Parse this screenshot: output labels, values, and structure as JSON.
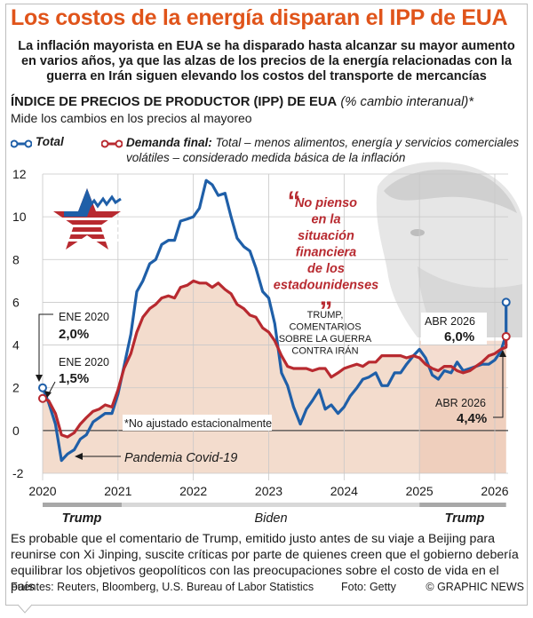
{
  "headline": "Los costos de la energía disparan el IPP de EUA",
  "subhead": "La inflación mayorista en EUA se ha disparado hasta alcanzar su mayor aumento en varios años, ya que las alzas de los precios de la energía relacionadas con la guerra en Irán siguen elevando los costos del transporte de mercancías",
  "legend": {
    "total_label": "Total",
    "final_label": "Demanda final:",
    "final_desc": " Total – menos alimentos, energía y servicios comerciales volátiles – considerado medida básica de la inflación"
  },
  "body_text": "Es probable que el comentario de Trump, emitido justo antes de su viaje a Beijing para reunirse con Xi Jinping, suscite críticas por parte de quienes creen que el gobierno debería equilibrar los objetivos geopolíticos con las preocupaciones sobre el costo de vida en el país",
  "footer": {
    "sources": "Fuentes: Reuters, Bloomberg, U.S. Bureau of Labor Statistics",
    "photo": "Foto: Getty",
    "credit": "© GRAPHIC NEWS"
  },
  "colors": {
    "total": "#1f5fa8",
    "final": "#b82a30",
    "accent": "#e0541a",
    "shade": "#f3d9c9"
  },
  "chart_data": {
    "type": "line",
    "title": "ÍNDICE DE PRECIOS DE PRODUCTOR (IPP) DE EUA",
    "title_suffix": "(% cambio interanual)*",
    "subtitle": "Mide los cambios en los precios al mayoreo",
    "ylim": [
      -2,
      12
    ],
    "yticks": [
      -2,
      0,
      2,
      4,
      6,
      8,
      10,
      12
    ],
    "xticks": [
      2020,
      2021,
      2022,
      2023,
      2024,
      2025,
      2026
    ],
    "series": [
      {
        "name": "Total",
        "color": "#1f5fa8",
        "x": [
          2020.0,
          2020.08,
          2020.17,
          2020.25,
          2020.33,
          2020.42,
          2020.5,
          2020.58,
          2020.67,
          2020.75,
          2020.83,
          2020.92,
          2021.0,
          2021.08,
          2021.17,
          2021.25,
          2021.33,
          2021.42,
          2021.5,
          2021.58,
          2021.67,
          2021.75,
          2021.83,
          2021.92,
          2022.0,
          2022.08,
          2022.17,
          2022.25,
          2022.33,
          2022.42,
          2022.5,
          2022.58,
          2022.67,
          2022.75,
          2022.83,
          2022.92,
          2023.0,
          2023.08,
          2023.17,
          2023.25,
          2023.33,
          2023.42,
          2023.5,
          2023.58,
          2023.67,
          2023.75,
          2023.83,
          2023.92,
          2024.0,
          2024.08,
          2024.17,
          2024.25,
          2024.33,
          2024.42,
          2024.5,
          2024.58,
          2024.67,
          2024.75,
          2024.83,
          2024.92,
          2025.0,
          2025.08,
          2025.17,
          2025.25,
          2025.33,
          2025.42,
          2025.5,
          2025.58,
          2025.67,
          2025.75,
          2025.83,
          2025.92,
          2026.0,
          2026.08,
          2026.17,
          2026.25
        ],
        "values": [
          2.0,
          1.3,
          0.3,
          -1.4,
          -1.1,
          -0.9,
          -0.4,
          -0.2,
          0.4,
          0.6,
          0.8,
          0.8,
          1.7,
          3.0,
          4.5,
          6.5,
          7.0,
          7.8,
          8.0,
          8.7,
          8.9,
          8.9,
          9.8,
          9.9,
          10.0,
          10.4,
          11.7,
          11.5,
          11.0,
          11.1,
          10.0,
          9.0,
          8.6,
          8.4,
          7.6,
          6.5,
          6.2,
          5.0,
          2.7,
          2.1,
          1.1,
          0.3,
          1.0,
          1.4,
          1.9,
          1.0,
          1.2,
          0.8,
          1.1,
          1.6,
          2.0,
          2.4,
          2.5,
          2.7,
          2.1,
          2.1,
          2.7,
          2.7,
          3.1,
          3.5,
          3.8,
          3.4,
          2.6,
          2.4,
          2.8,
          2.7,
          3.2,
          2.8,
          2.9,
          3.0,
          3.1,
          3.1,
          3.3,
          3.7,
          4.5,
          6.0
        ]
      },
      {
        "name": "Demanda final",
        "color": "#b82a30",
        "x": [
          2020.0,
          2020.08,
          2020.17,
          2020.25,
          2020.33,
          2020.42,
          2020.5,
          2020.58,
          2020.67,
          2020.75,
          2020.83,
          2020.92,
          2021.0,
          2021.08,
          2021.17,
          2021.25,
          2021.33,
          2021.42,
          2021.5,
          2021.58,
          2021.67,
          2021.75,
          2021.83,
          2021.92,
          2022.0,
          2022.08,
          2022.17,
          2022.25,
          2022.33,
          2022.42,
          2022.5,
          2022.58,
          2022.67,
          2022.75,
          2022.83,
          2022.92,
          2023.0,
          2023.08,
          2023.17,
          2023.25,
          2023.33,
          2023.42,
          2023.5,
          2023.58,
          2023.67,
          2023.75,
          2023.83,
          2023.92,
          2024.0,
          2024.08,
          2024.17,
          2024.25,
          2024.33,
          2024.42,
          2024.5,
          2024.58,
          2024.67,
          2024.75,
          2024.83,
          2024.92,
          2025.0,
          2025.08,
          2025.17,
          2025.25,
          2025.33,
          2025.42,
          2025.5,
          2025.58,
          2025.67,
          2025.75,
          2025.83,
          2025.92,
          2026.0,
          2026.08,
          2026.17,
          2026.25
        ],
        "values": [
          1.5,
          1.4,
          0.8,
          -0.2,
          -0.3,
          -0.1,
          0.3,
          0.6,
          0.9,
          1.0,
          1.2,
          1.1,
          1.9,
          2.9,
          3.6,
          4.6,
          5.3,
          5.7,
          5.9,
          6.2,
          6.3,
          6.2,
          6.7,
          6.8,
          7.0,
          6.9,
          6.9,
          6.7,
          6.9,
          6.6,
          6.4,
          5.9,
          5.7,
          5.4,
          5.3,
          4.8,
          4.6,
          4.2,
          3.5,
          3.0,
          2.9,
          2.9,
          2.9,
          2.8,
          2.9,
          2.9,
          2.5,
          2.7,
          2.9,
          3.0,
          3.1,
          3.0,
          3.2,
          3.2,
          3.5,
          3.5,
          3.5,
          3.5,
          3.4,
          3.5,
          3.4,
          3.1,
          2.9,
          2.8,
          3.0,
          3.0,
          2.8,
          2.7,
          2.8,
          3.0,
          3.2,
          3.5,
          3.6,
          3.8,
          3.9,
          4.4
        ]
      }
    ],
    "annotations": {
      "jan2020_label": "ENE 2020",
      "jan2020_total": "2,0%",
      "jan2020_final": "1,5%",
      "apr2026_label": "ABR 2026",
      "apr2026_total": "6,0%",
      "apr2026_final": "4,4%",
      "covid": "Pandemia Covid-19",
      "not_adjusted": "*No ajustado estacionalmente",
      "quote": [
        "No pienso",
        "en la",
        "situación",
        "financiera",
        "de los",
        "estadounidenses"
      ],
      "quote_attr": [
        "TRUMP,",
        "COMENTARIOS",
        "SOBRE LA GUERRA",
        "CONTRA IRÁN"
      ],
      "term_trump_1": "Trump",
      "term_biden": "Biden",
      "term_trump_2": "Trump"
    }
  }
}
